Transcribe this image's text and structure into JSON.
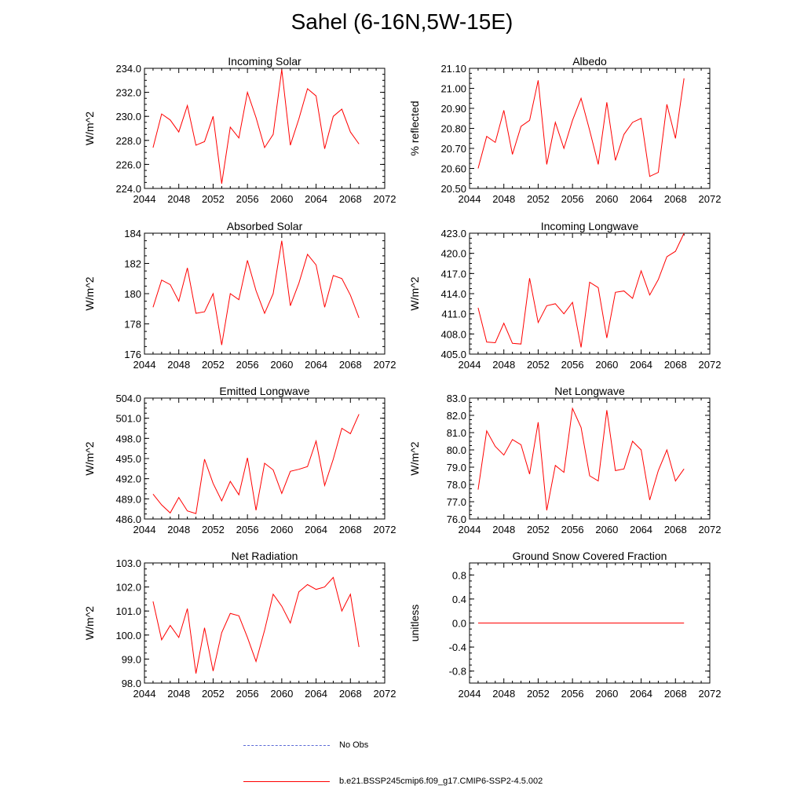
{
  "title": "Sahel (6-16N,5W-15E)",
  "colors": {
    "model": "#ff0000",
    "obs": "#4f5fd6",
    "axis": "#000000"
  },
  "legend": {
    "obs_label": "No Obs",
    "model_label": "b.e21.BSSP245cmip6.f09_g17.CMIP6-SSP2-4.5.002"
  },
  "chart_data": [
    {
      "type": "line",
      "title": "Incoming Solar",
      "ylabel": "W/m^2",
      "x": [
        2045,
        2046,
        2047,
        2048,
        2049,
        2050,
        2051,
        2052,
        2053,
        2054,
        2055,
        2056,
        2057,
        2058,
        2059,
        2060,
        2061,
        2062,
        2063,
        2064,
        2065,
        2066,
        2067,
        2068,
        2069
      ],
      "values": [
        227.4,
        230.2,
        229.7,
        228.7,
        230.9,
        227.6,
        227.9,
        230.0,
        224.4,
        229.1,
        228.2,
        232.0,
        229.9,
        227.4,
        228.5,
        233.9,
        227.6,
        229.8,
        232.3,
        231.7,
        227.3,
        230.0,
        230.6,
        228.7,
        227.7
      ],
      "xlim": [
        2044,
        2072
      ],
      "ylim": [
        224,
        234
      ],
      "yticks": [
        "224.0",
        "226.0",
        "228.0",
        "230.0",
        "232.0",
        "234.0"
      ],
      "xticks": [
        "2044",
        "2048",
        "2052",
        "2056",
        "2060",
        "2064",
        "2068",
        "2072"
      ]
    },
    {
      "type": "line",
      "title": "Albedo",
      "ylabel": "% reflected",
      "x": [
        2045,
        2046,
        2047,
        2048,
        2049,
        2050,
        2051,
        2052,
        2053,
        2054,
        2055,
        2056,
        2057,
        2058,
        2059,
        2060,
        2061,
        2062,
        2063,
        2064,
        2065,
        2066,
        2067,
        2068,
        2069
      ],
      "values": [
        20.6,
        20.76,
        20.73,
        20.89,
        20.67,
        20.81,
        20.84,
        21.04,
        20.62,
        20.83,
        20.7,
        20.84,
        20.95,
        20.79,
        20.62,
        20.93,
        20.64,
        20.77,
        20.83,
        20.85,
        20.56,
        20.58,
        20.92,
        20.75,
        21.05
      ],
      "xlim": [
        2044,
        2072
      ],
      "ylim": [
        20.5,
        21.1
      ],
      "yticks": [
        "20.50",
        "20.60",
        "20.70",
        "20.80",
        "20.90",
        "21.00",
        "21.10"
      ],
      "xticks": [
        "2044",
        "2048",
        "2052",
        "2056",
        "2060",
        "2064",
        "2068",
        "2072"
      ]
    },
    {
      "type": "line",
      "title": "Absorbed Solar",
      "ylabel": "W/m^2",
      "x": [
        2045,
        2046,
        2047,
        2048,
        2049,
        2050,
        2051,
        2052,
        2053,
        2054,
        2055,
        2056,
        2057,
        2058,
        2059,
        2060,
        2061,
        2062,
        2063,
        2064,
        2065,
        2066,
        2067,
        2068,
        2069
      ],
      "values": [
        179.1,
        180.9,
        180.6,
        179.5,
        181.7,
        178.7,
        178.8,
        180.0,
        176.6,
        180.0,
        179.6,
        182.2,
        180.2,
        178.7,
        180.0,
        183.5,
        179.2,
        180.7,
        182.6,
        181.9,
        179.1,
        181.2,
        181.0,
        179.9,
        178.4
      ],
      "xlim": [
        2044,
        2072
      ],
      "ylim": [
        176,
        184
      ],
      "yticks": [
        "176",
        "178",
        "180",
        "182",
        "184"
      ],
      "xticks": [
        "2044",
        "2048",
        "2052",
        "2056",
        "2060",
        "2064",
        "2068",
        "2072"
      ]
    },
    {
      "type": "line",
      "title": "Incoming Longwave",
      "ylabel": "W/m^2",
      "x": [
        2045,
        2046,
        2047,
        2048,
        2049,
        2050,
        2051,
        2052,
        2053,
        2054,
        2055,
        2056,
        2057,
        2058,
        2059,
        2060,
        2061,
        2062,
        2063,
        2064,
        2065,
        2066,
        2067,
        2068,
        2069
      ],
      "values": [
        411.9,
        406.8,
        406.7,
        409.6,
        406.6,
        406.5,
        416.3,
        409.7,
        412.2,
        412.5,
        411.0,
        412.7,
        406.0,
        415.7,
        414.9,
        407.4,
        414.2,
        414.4,
        413.3,
        417.4,
        413.8,
        416.1,
        419.5,
        420.3,
        423.0
      ],
      "xlim": [
        2044,
        2072
      ],
      "ylim": [
        405,
        423
      ],
      "yticks": [
        "405.0",
        "408.0",
        "411.0",
        "414.0",
        "417.0",
        "420.0",
        "423.0"
      ],
      "xticks": [
        "2044",
        "2048",
        "2052",
        "2056",
        "2060",
        "2064",
        "2068",
        "2072"
      ]
    },
    {
      "type": "line",
      "title": "Emitted Longwave",
      "ylabel": "W/m^2",
      "x": [
        2045,
        2046,
        2047,
        2048,
        2049,
        2050,
        2051,
        2052,
        2053,
        2054,
        2055,
        2056,
        2057,
        2058,
        2059,
        2060,
        2061,
        2062,
        2063,
        2064,
        2065,
        2066,
        2067,
        2068,
        2069
      ],
      "values": [
        489.7,
        488.1,
        486.9,
        489.2,
        487.2,
        486.8,
        494.9,
        491.3,
        488.7,
        491.6,
        489.6,
        495.1,
        487.3,
        494.3,
        493.3,
        489.8,
        493.1,
        493.4,
        493.8,
        497.6,
        491.0,
        494.9,
        499.5,
        498.7,
        501.6
      ],
      "xlim": [
        2044,
        2072
      ],
      "ylim": [
        486,
        504
      ],
      "yticks": [
        "486.0",
        "489.0",
        "492.0",
        "495.0",
        "498.0",
        "501.0",
        "504.0"
      ],
      "xticks": [
        "2044",
        "2048",
        "2052",
        "2056",
        "2060",
        "2064",
        "2068",
        "2072"
      ]
    },
    {
      "type": "line",
      "title": "Net Longwave",
      "ylabel": "W/m^2",
      "x": [
        2045,
        2046,
        2047,
        2048,
        2049,
        2050,
        2051,
        2052,
        2053,
        2054,
        2055,
        2056,
        2057,
        2058,
        2059,
        2060,
        2061,
        2062,
        2063,
        2064,
        2065,
        2066,
        2067,
        2068,
        2069
      ],
      "values": [
        77.7,
        81.1,
        80.2,
        79.7,
        80.6,
        80.3,
        78.6,
        81.6,
        76.5,
        79.1,
        78.7,
        82.4,
        81.3,
        78.5,
        78.2,
        82.3,
        78.8,
        78.9,
        80.5,
        80.0,
        77.1,
        78.8,
        80.0,
        78.2,
        78.9
      ],
      "xlim": [
        2044,
        2072
      ],
      "ylim": [
        76,
        83
      ],
      "yticks": [
        "76.0",
        "77.0",
        "78.0",
        "79.0",
        "80.0",
        "81.0",
        "82.0",
        "83.0"
      ],
      "xticks": [
        "2044",
        "2048",
        "2052",
        "2056",
        "2060",
        "2064",
        "2068",
        "2072"
      ]
    },
    {
      "type": "line",
      "title": "Net Radiation",
      "ylabel": "W/m^2",
      "x": [
        2045,
        2046,
        2047,
        2048,
        2049,
        2050,
        2051,
        2052,
        2053,
        2054,
        2055,
        2056,
        2057,
        2058,
        2059,
        2060,
        2061,
        2062,
        2063,
        2064,
        2065,
        2066,
        2067,
        2068,
        2069
      ],
      "values": [
        101.4,
        99.8,
        100.4,
        99.9,
        101.1,
        98.4,
        100.3,
        98.5,
        100.1,
        100.9,
        100.8,
        99.9,
        98.9,
        100.2,
        101.7,
        101.2,
        100.5,
        101.8,
        102.1,
        101.9,
        102.0,
        102.4,
        101.0,
        101.7,
        99.5
      ],
      "xlim": [
        2044,
        2072
      ],
      "ylim": [
        98,
        103
      ],
      "yticks": [
        "98.0",
        "99.0",
        "100.0",
        "101.0",
        "102.0",
        "103.0"
      ],
      "xticks": [
        "2044",
        "2048",
        "2052",
        "2056",
        "2060",
        "2064",
        "2068",
        "2072"
      ]
    },
    {
      "type": "line",
      "title": "Ground Snow Covered Fraction",
      "ylabel": "unitless",
      "x": [
        2045,
        2046,
        2047,
        2048,
        2049,
        2050,
        2051,
        2052,
        2053,
        2054,
        2055,
        2056,
        2057,
        2058,
        2059,
        2060,
        2061,
        2062,
        2063,
        2064,
        2065,
        2066,
        2067,
        2068,
        2069
      ],
      "values": [
        0,
        0,
        0,
        0,
        0,
        0,
        0,
        0,
        0,
        0,
        0,
        0,
        0,
        0,
        0,
        0,
        0,
        0,
        0,
        0,
        0,
        0,
        0,
        0,
        0
      ],
      "xlim": [
        2044,
        2072
      ],
      "ylim": [
        -1,
        1
      ],
      "yticks": [
        "-0.8",
        "-0.4",
        "0.0",
        "0.4",
        "0.8"
      ],
      "ytick_values": [
        -0.8,
        -0.4,
        0.0,
        0.4,
        0.8
      ],
      "xticks": [
        "2044",
        "2048",
        "2052",
        "2056",
        "2060",
        "2064",
        "2068",
        "2072"
      ]
    }
  ]
}
